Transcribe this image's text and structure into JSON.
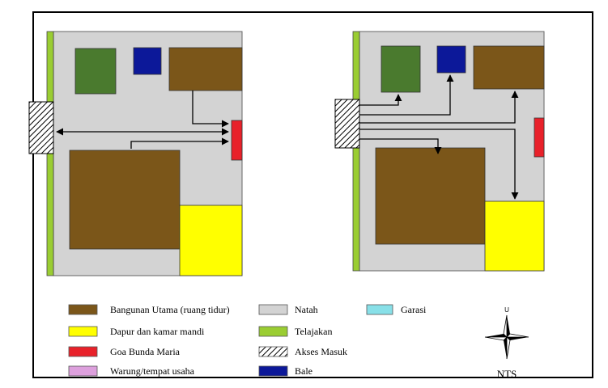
{
  "legend": [
    {
      "label": "Bangunan Utama (ruang tidur)",
      "color": "#7b5619"
    },
    {
      "label": "Dapur dan kamar mandi",
      "color": "#ffff00"
    },
    {
      "label": "Goa Bunda Maria",
      "color": "#e8212a"
    },
    {
      "label": "Warung/tempat usaha",
      "color": "#dda0dd"
    },
    {
      "label": "Natah",
      "color": "#d3d3d3"
    },
    {
      "label": "Telajakan",
      "color": "#9acd32"
    },
    {
      "label": "Akses Masuk",
      "color": "hatch"
    },
    {
      "label": "Bale",
      "color": "#0c1899"
    },
    {
      "label": "Garasi",
      "color": "#88e0e8"
    }
  ],
  "compass": {
    "north_label": "U",
    "scale_label": "NTS"
  }
}
